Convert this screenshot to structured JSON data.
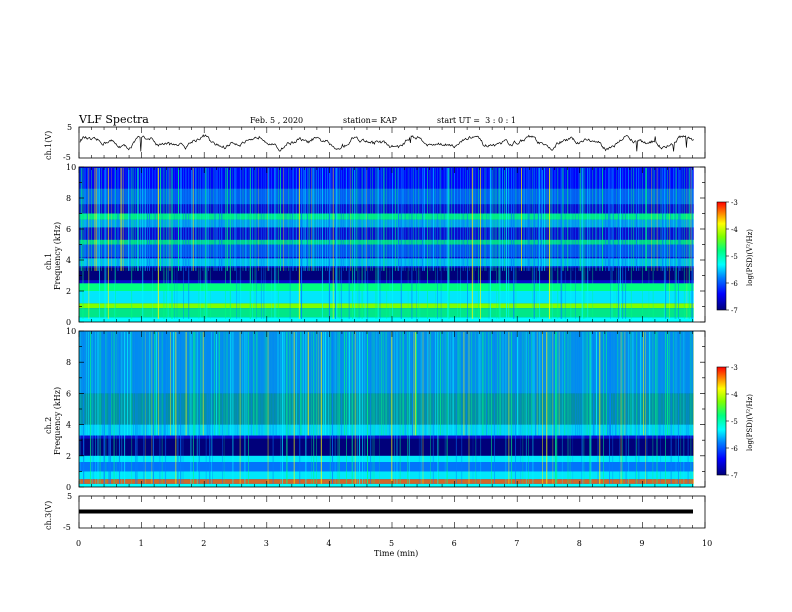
{
  "header": {
    "title": "VLF Spectra",
    "date": "Feb. 5 , 2020",
    "station": "station= KAP",
    "start": "start UT =  3 : 0 : 1"
  },
  "chart_data": [
    {
      "type": "line",
      "panel": "ch1-waveform",
      "ylabel": "ch.1(V)",
      "ylim": [
        -5,
        5
      ],
      "yticks": [
        "5",
        "-5"
      ],
      "xlim": [
        0,
        10
      ],
      "note": "noisy low-frequency waveform around ~0 V (approx. -3 to +3 V)"
    },
    {
      "type": "heatmap",
      "panel": "ch1-spectrogram",
      "ylabel": "ch.1 Frequency (kHz)",
      "ylim": [
        0,
        10
      ],
      "yticks": [
        "0",
        "2",
        "4",
        "6",
        "8",
        "10"
      ],
      "xlim": [
        0,
        10
      ],
      "colorbar": {
        "label": "log(PSD)(V²/Hz)",
        "range": [
          -7,
          -3
        ],
        "ticks": [
          "-3",
          "-4",
          "-5",
          "-6",
          "-7"
        ]
      }
    },
    {
      "type": "heatmap",
      "panel": "ch2-spectrogram",
      "ylabel": "ch.2 Frequency (kHz)",
      "ylim": [
        0,
        10
      ],
      "yticks": [
        "0",
        "2",
        "4",
        "6",
        "8",
        "10"
      ],
      "xlim": [
        0,
        10
      ],
      "colorbar": {
        "label": "log(PSD)(V²/Hz)",
        "range": [
          -7,
          -3
        ],
        "ticks": [
          "-3",
          "-4",
          "-5",
          "-6",
          "-7"
        ]
      }
    },
    {
      "type": "line",
      "panel": "ch3-waveform",
      "ylabel": "ch.3(V)",
      "ylim": [
        -5,
        5
      ],
      "yticks": [
        "5",
        "-5"
      ],
      "xlim": [
        0,
        10
      ],
      "note": "flat signal at approx. -1.3 V"
    }
  ],
  "xaxis": {
    "label": "Time  (min)",
    "ticks": [
      "0",
      "1",
      "2",
      "3",
      "4",
      "5",
      "6",
      "7",
      "8",
      "9",
      "10"
    ]
  },
  "colors": {
    "waveform": "#000000",
    "colormap": [
      "#00007a",
      "#0000ff",
      "#0080ff",
      "#00ffff",
      "#00ff80",
      "#80ff00",
      "#ffff00",
      "#ff8000",
      "#ff0000"
    ]
  }
}
